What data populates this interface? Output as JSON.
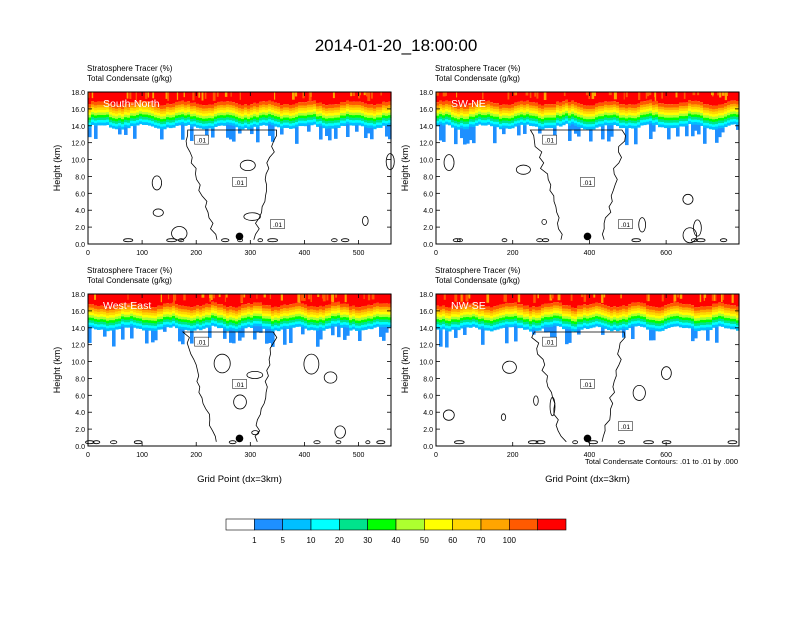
{
  "title": "2014-01-20_18:00:00",
  "colorbar": {
    "colors": [
      "#ffffff",
      "#1e90ff",
      "#00bfff",
      "#00ffff",
      "#00e38c",
      "#00ff00",
      "#adff2f",
      "#ffff00",
      "#ffd700",
      "#ffa500",
      "#ff5a00",
      "#ff0000"
    ],
    "labels": [
      "1",
      "5",
      "10",
      "20",
      "30",
      "40",
      "50",
      "60",
      "70",
      "100"
    ]
  },
  "contour_note": "Total Condensate Contours: .01 to .01 by .000",
  "chart_data": [
    {
      "type": "heatmap",
      "panel_label": "South-North",
      "header_line1": "Stratosphere Tracer   (%)",
      "header_line2": "Total Condensate   (g/kg)",
      "ylabel": "Height (km)",
      "xlabel": "",
      "xlim": [
        0,
        560
      ],
      "ylim": [
        0,
        18
      ],
      "xticks": [
        0,
        100,
        200,
        300,
        400,
        500
      ],
      "yticks": [
        "0.0",
        "2.0",
        "4.0",
        "6.0",
        "8.0",
        "10.0",
        "12.0",
        "14.0",
        "16.0",
        "18.0"
      ],
      "marker_x": 280,
      "contour_labels": [
        ".01",
        ".01",
        ".01"
      ]
    },
    {
      "type": "heatmap",
      "panel_label": "SW-NE",
      "header_line1": "Stratosphere Tracer   (%)",
      "header_line2": "Total Condensate   (g/kg)",
      "ylabel": "Height (km)",
      "xlabel": "",
      "xlim": [
        0,
        790
      ],
      "ylim": [
        0,
        18
      ],
      "xticks": [
        0,
        200,
        400,
        600
      ],
      "yticks": [
        "0.0",
        "2.0",
        "4.0",
        "6.0",
        "8.0",
        "10.0",
        "12.0",
        "14.0",
        "16.0",
        "18.0"
      ],
      "marker_x": 395,
      "contour_labels": [
        ".01",
        ".01",
        ".01"
      ]
    },
    {
      "type": "heatmap",
      "panel_label": "West-East",
      "header_line1": "Stratosphere Tracer   (%)",
      "header_line2": "Total Condensate   (g/kg)",
      "ylabel": "Height (km)",
      "xlabel": "Grid Point (dx=3km)",
      "xlim": [
        0,
        560
      ],
      "ylim": [
        0,
        18
      ],
      "xticks": [
        0,
        100,
        200,
        300,
        400,
        500
      ],
      "yticks": [
        "0.0",
        "2.0",
        "4.0",
        "6.0",
        "8.0",
        "10.0",
        "12.0",
        "14.0",
        "16.0",
        "18.0"
      ],
      "marker_x": 280,
      "contour_labels": [
        ".01",
        ".01"
      ]
    },
    {
      "type": "heatmap",
      "panel_label": "NW-SE",
      "header_line1": "Stratosphere Tracer   (%)",
      "header_line2": "Total Condensate   (g/kg)",
      "ylabel": "Height (km)",
      "xlabel": "Grid Point (dx=3km)",
      "xlim": [
        0,
        790
      ],
      "ylim": [
        0,
        18
      ],
      "xticks": [
        0,
        200,
        400,
        600
      ],
      "yticks": [
        "0.0",
        "2.0",
        "4.0",
        "6.0",
        "8.0",
        "10.0",
        "12.0",
        "14.0",
        "16.0",
        "18.0"
      ],
      "marker_x": 395,
      "contour_labels": [
        ".01",
        ".01",
        ".01"
      ]
    }
  ]
}
